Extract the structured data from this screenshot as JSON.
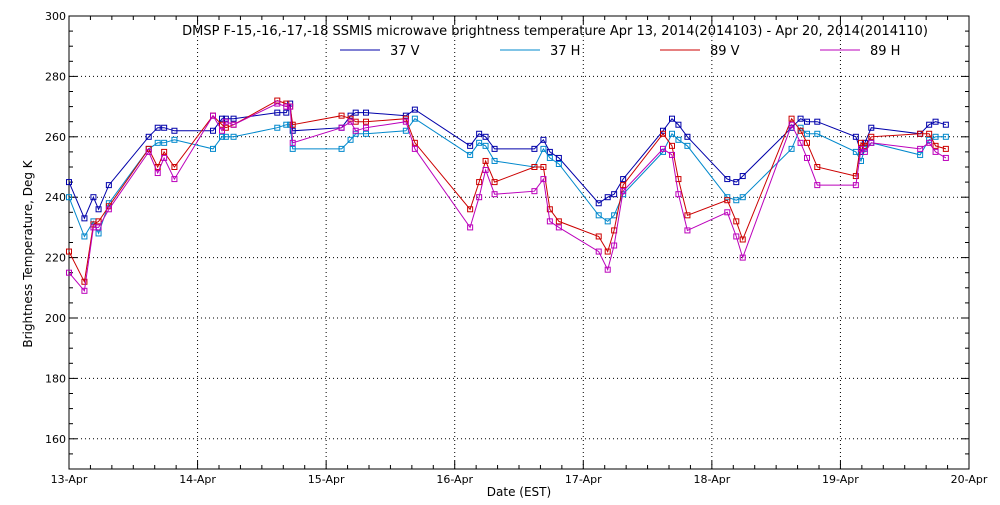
{
  "chart_data": {
    "type": "line",
    "title": "DMSP F-15,-16,-17,-18 SSMIS microwave brightness temperature Apr 13, 2014(2014103) - Apr 20, 2014(2014110)",
    "xlabel": "Date (EST)",
    "ylabel": "Brightness Temperature, Deg K",
    "xlim": [
      0,
      7
    ],
    "ylim": [
      150,
      300
    ],
    "x_ticks": [
      {
        "value": 0,
        "label": "13-Apr"
      },
      {
        "value": 1,
        "label": "14-Apr"
      },
      {
        "value": 2,
        "label": "15-Apr"
      },
      {
        "value": 3,
        "label": "16-Apr"
      },
      {
        "value": 4,
        "label": "17-Apr"
      },
      {
        "value": 5,
        "label": "18-Apr"
      },
      {
        "value": 6,
        "label": "19-Apr"
      },
      {
        "value": 7,
        "label": "20-Apr"
      }
    ],
    "y_ticks": [
      {
        "value": 160,
        "label": "160"
      },
      {
        "value": 180,
        "label": "180"
      },
      {
        "value": 200,
        "label": "200"
      },
      {
        "value": 220,
        "label": "220"
      },
      {
        "value": 240,
        "label": "240"
      },
      {
        "value": 260,
        "label": "260"
      },
      {
        "value": 280,
        "label": "280"
      },
      {
        "value": 300,
        "label": "300"
      }
    ],
    "grid": true,
    "legend": "top-center",
    "series": [
      {
        "name": "37 V",
        "color": "#0000aa",
        "points": [
          [
            0.0,
            245
          ],
          [
            0.12,
            233
          ],
          [
            0.19,
            240
          ],
          [
            0.23,
            236
          ],
          [
            0.31,
            244
          ],
          [
            0.62,
            260
          ],
          [
            0.69,
            263
          ],
          [
            0.74,
            263
          ],
          [
            0.82,
            262
          ],
          [
            1.12,
            262
          ],
          [
            1.19,
            266
          ],
          [
            1.22,
            266
          ],
          [
            1.28,
            266
          ],
          [
            1.62,
            268
          ],
          [
            1.69,
            268
          ],
          [
            1.72,
            271
          ],
          [
            1.74,
            262
          ],
          [
            2.12,
            263
          ],
          [
            2.19,
            267
          ],
          [
            2.23,
            268
          ],
          [
            2.31,
            268
          ],
          [
            2.62,
            267
          ],
          [
            2.69,
            269
          ],
          [
            3.12,
            257
          ],
          [
            3.19,
            261
          ],
          [
            3.24,
            260
          ],
          [
            3.31,
            256
          ],
          [
            3.62,
            256
          ],
          [
            3.69,
            259
          ],
          [
            3.74,
            255
          ],
          [
            3.81,
            253
          ],
          [
            4.12,
            238
          ],
          [
            4.19,
            240
          ],
          [
            4.24,
            241
          ],
          [
            4.31,
            246
          ],
          [
            4.62,
            262
          ],
          [
            4.69,
            266
          ],
          [
            4.74,
            264
          ],
          [
            4.81,
            260
          ],
          [
            5.12,
            246
          ],
          [
            5.19,
            245
          ],
          [
            5.24,
            247
          ],
          [
            5.62,
            263
          ],
          [
            5.69,
            266
          ],
          [
            5.74,
            265
          ],
          [
            5.82,
            265
          ],
          [
            6.12,
            260
          ],
          [
            6.16,
            255
          ],
          [
            6.19,
            258
          ],
          [
            6.24,
            263
          ],
          [
            6.62,
            261
          ],
          [
            6.69,
            264
          ],
          [
            6.74,
            265
          ],
          [
            6.82,
            264
          ]
        ]
      },
      {
        "name": "37 H",
        "color": "#0088cc",
        "points": [
          [
            0.0,
            240
          ],
          [
            0.12,
            227
          ],
          [
            0.19,
            232
          ],
          [
            0.23,
            228
          ],
          [
            0.31,
            238
          ],
          [
            0.62,
            256
          ],
          [
            0.69,
            258
          ],
          [
            0.74,
            258
          ],
          [
            0.82,
            259
          ],
          [
            1.12,
            256
          ],
          [
            1.19,
            260
          ],
          [
            1.22,
            260
          ],
          [
            1.28,
            260
          ],
          [
            1.62,
            263
          ],
          [
            1.69,
            264
          ],
          [
            1.72,
            264
          ],
          [
            1.74,
            256
          ],
          [
            2.12,
            256
          ],
          [
            2.19,
            259
          ],
          [
            2.23,
            261
          ],
          [
            2.31,
            261
          ],
          [
            2.62,
            262
          ],
          [
            2.69,
            266
          ],
          [
            3.12,
            254
          ],
          [
            3.19,
            258
          ],
          [
            3.24,
            257
          ],
          [
            3.31,
            252
          ],
          [
            3.62,
            250
          ],
          [
            3.69,
            256
          ],
          [
            3.74,
            253
          ],
          [
            3.81,
            251
          ],
          [
            4.12,
            234
          ],
          [
            4.19,
            232
          ],
          [
            4.24,
            234
          ],
          [
            4.31,
            241
          ],
          [
            4.62,
            255
          ],
          [
            4.69,
            261
          ],
          [
            4.74,
            259
          ],
          [
            4.81,
            257
          ],
          [
            5.12,
            240
          ],
          [
            5.19,
            239
          ],
          [
            5.24,
            240
          ],
          [
            5.62,
            256
          ],
          [
            5.69,
            263
          ],
          [
            5.74,
            261
          ],
          [
            5.82,
            261
          ],
          [
            6.12,
            255
          ],
          [
            6.16,
            252
          ],
          [
            6.19,
            256
          ],
          [
            6.24,
            258
          ],
          [
            6.62,
            254
          ],
          [
            6.69,
            259
          ],
          [
            6.74,
            260
          ],
          [
            6.82,
            260
          ]
        ]
      },
      {
        "name": "89 V",
        "color": "#cc0000",
        "points": [
          [
            0.0,
            222
          ],
          [
            0.12,
            212
          ],
          [
            0.19,
            231
          ],
          [
            0.23,
            232
          ],
          [
            0.31,
            237
          ],
          [
            0.62,
            256
          ],
          [
            0.69,
            250
          ],
          [
            0.74,
            255
          ],
          [
            0.82,
            250
          ],
          [
            1.12,
            267
          ],
          [
            1.19,
            264
          ],
          [
            1.22,
            263
          ],
          [
            1.28,
            264
          ],
          [
            1.62,
            272
          ],
          [
            1.69,
            271
          ],
          [
            1.72,
            270
          ],
          [
            1.74,
            264
          ],
          [
            2.12,
            267
          ],
          [
            2.19,
            266
          ],
          [
            2.23,
            265
          ],
          [
            2.31,
            265
          ],
          [
            2.62,
            266
          ],
          [
            2.69,
            258
          ],
          [
            3.12,
            236
          ],
          [
            3.19,
            245
          ],
          [
            3.24,
            252
          ],
          [
            3.31,
            245
          ],
          [
            3.62,
            250
          ],
          [
            3.69,
            250
          ],
          [
            3.74,
            236
          ],
          [
            3.81,
            232
          ],
          [
            4.12,
            227
          ],
          [
            4.19,
            222
          ],
          [
            4.24,
            229
          ],
          [
            4.31,
            244
          ],
          [
            4.62,
            261
          ],
          [
            4.69,
            257
          ],
          [
            4.74,
            246
          ],
          [
            4.81,
            234
          ],
          [
            5.12,
            239
          ],
          [
            5.19,
            232
          ],
          [
            5.24,
            226
          ],
          [
            5.62,
            266
          ],
          [
            5.69,
            262
          ],
          [
            5.74,
            258
          ],
          [
            5.82,
            250
          ],
          [
            6.12,
            247
          ],
          [
            6.16,
            258
          ],
          [
            6.19,
            257
          ],
          [
            6.24,
            260
          ],
          [
            6.62,
            261
          ],
          [
            6.69,
            261
          ],
          [
            6.74,
            257
          ],
          [
            6.82,
            256
          ]
        ]
      },
      {
        "name": "89 H",
        "color": "#bb00bb",
        "points": [
          [
            0.0,
            215
          ],
          [
            0.12,
            209
          ],
          [
            0.19,
            230
          ],
          [
            0.23,
            230
          ],
          [
            0.31,
            236
          ],
          [
            0.62,
            255
          ],
          [
            0.69,
            248
          ],
          [
            0.74,
            253
          ],
          [
            0.82,
            246
          ],
          [
            1.12,
            267
          ],
          [
            1.19,
            262
          ],
          [
            1.22,
            265
          ],
          [
            1.28,
            264
          ],
          [
            1.62,
            271
          ],
          [
            1.69,
            270
          ],
          [
            1.72,
            270
          ],
          [
            1.74,
            258
          ],
          [
            2.12,
            263
          ],
          [
            2.19,
            265
          ],
          [
            2.23,
            262
          ],
          [
            2.31,
            263
          ],
          [
            2.62,
            265
          ],
          [
            2.69,
            256
          ],
          [
            3.12,
            230
          ],
          [
            3.19,
            240
          ],
          [
            3.24,
            249
          ],
          [
            3.31,
            241
          ],
          [
            3.62,
            242
          ],
          [
            3.69,
            246
          ],
          [
            3.74,
            232
          ],
          [
            3.81,
            230
          ],
          [
            4.12,
            222
          ],
          [
            4.19,
            216
          ],
          [
            4.24,
            224
          ],
          [
            4.31,
            242
          ],
          [
            4.62,
            256
          ],
          [
            4.69,
            254
          ],
          [
            4.74,
            241
          ],
          [
            4.81,
            229
          ],
          [
            5.12,
            235
          ],
          [
            5.19,
            227
          ],
          [
            5.24,
            220
          ],
          [
            5.62,
            264
          ],
          [
            5.69,
            258
          ],
          [
            5.74,
            253
          ],
          [
            5.82,
            244
          ],
          [
            6.12,
            244
          ],
          [
            6.16,
            256
          ],
          [
            6.19,
            255
          ],
          [
            6.24,
            258
          ],
          [
            6.62,
            256
          ],
          [
            6.69,
            258
          ],
          [
            6.74,
            255
          ],
          [
            6.82,
            253
          ]
        ]
      }
    ]
  }
}
